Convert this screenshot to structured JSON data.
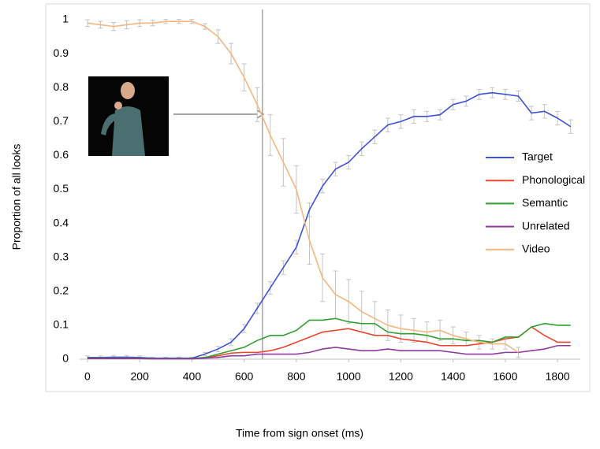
{
  "chart_data": {
    "type": "line",
    "xlabel": "Time from sign onset (ms)",
    "ylabel": "Proportion of all looks",
    "x": [
      0,
      50,
      100,
      150,
      200,
      250,
      300,
      350,
      400,
      450,
      500,
      550,
      600,
      650,
      700,
      750,
      800,
      850,
      900,
      950,
      1000,
      1050,
      1100,
      1150,
      1200,
      1250,
      1300,
      1350,
      1400,
      1450,
      1500,
      1550,
      1600,
      1650,
      1700,
      1750,
      1800,
      1850
    ],
    "xlim": [
      -30,
      1875
    ],
    "xticks": [
      0,
      200,
      400,
      600,
      800,
      1000,
      1200,
      1400,
      1600,
      1800
    ],
    "ylim": [
      0,
      1
    ],
    "yticks": [
      0,
      0.1,
      0.2,
      0.3,
      0.4,
      0.5,
      0.6,
      0.7,
      0.8,
      0.9,
      1
    ],
    "grid": false,
    "legend": "right",
    "vline": 670,
    "series": [
      {
        "name": "Target",
        "color": "#3f51d8",
        "values": [
          0.005,
          0.005,
          0.006,
          0.006,
          0.005,
          0.003,
          0.003,
          0.003,
          0.003,
          0.015,
          0.03,
          0.05,
          0.09,
          0.15,
          0.21,
          0.27,
          0.33,
          0.44,
          0.51,
          0.56,
          0.58,
          0.62,
          0.655,
          0.69,
          0.7,
          0.715,
          0.715,
          0.72,
          0.75,
          0.76,
          0.78,
          0.785,
          0.78,
          0.775,
          0.725,
          0.73,
          0.71,
          0.685
        ],
        "errors": [
          0.005,
          0.005,
          0.005,
          0.005,
          0.005,
          0.003,
          0.003,
          0.003,
          0.003,
          0.005,
          0.008,
          0.01,
          0.012,
          0.015,
          0.018,
          0.02,
          0.02,
          0.02,
          0.02,
          0.02,
          0.02,
          0.02,
          0.02,
          0.02,
          0.02,
          0.02,
          0.015,
          0.015,
          0.015,
          0.015,
          0.015,
          0.015,
          0.015,
          0.015,
          0.02,
          0.02,
          0.02,
          0.02
        ]
      },
      {
        "name": "Phonological",
        "color": "#f0432c",
        "values": [
          0.003,
          0.003,
          0.003,
          0.003,
          0.003,
          0.002,
          0.002,
          0.002,
          0.002,
          0.005,
          0.01,
          0.018,
          0.02,
          0.02,
          0.025,
          0.035,
          0.05,
          0.065,
          0.08,
          0.085,
          0.09,
          0.08,
          0.07,
          0.07,
          0.06,
          0.055,
          0.05,
          0.04,
          0.04,
          0.04,
          0.045,
          0.05,
          0.06,
          0.065,
          0.095,
          0.07,
          0.05,
          0.05
        ]
      },
      {
        "name": "Semantic",
        "color": "#2ea02e",
        "values": [
          0.003,
          0.003,
          0.003,
          0.003,
          0.003,
          0.002,
          0.002,
          0.002,
          0.002,
          0.005,
          0.015,
          0.025,
          0.035,
          0.055,
          0.07,
          0.07,
          0.085,
          0.115,
          0.115,
          0.12,
          0.11,
          0.105,
          0.105,
          0.08,
          0.075,
          0.075,
          0.07,
          0.06,
          0.06,
          0.055,
          0.055,
          0.05,
          0.065,
          0.065,
          0.095,
          0.105,
          0.1,
          0.1
        ]
      },
      {
        "name": "Unrelated",
        "color": "#8e3a9e",
        "values": [
          0.002,
          0.002,
          0.002,
          0.002,
          0.002,
          0.001,
          0.001,
          0.001,
          0.001,
          0.003,
          0.005,
          0.01,
          0.01,
          0.015,
          0.015,
          0.015,
          0.015,
          0.02,
          0.03,
          0.035,
          0.03,
          0.025,
          0.025,
          0.03,
          0.025,
          0.025,
          0.025,
          0.025,
          0.02,
          0.015,
          0.015,
          0.015,
          0.02,
          0.02,
          0.025,
          0.03,
          0.04,
          0.04
        ]
      },
      {
        "name": "Video",
        "color": "#f5b77f",
        "values": [
          0.99,
          0.985,
          0.98,
          0.985,
          0.99,
          0.99,
          0.995,
          0.995,
          0.995,
          0.98,
          0.95,
          0.9,
          0.83,
          0.75,
          0.66,
          0.58,
          0.5,
          0.35,
          0.24,
          0.19,
          0.17,
          0.14,
          0.12,
          0.1,
          0.09,
          0.085,
          0.08,
          0.085,
          0.07,
          0.06,
          0.05,
          0.045,
          0.045,
          0.02,
          null,
          null,
          null,
          null
        ],
        "errors": [
          0.01,
          0.01,
          0.012,
          0.012,
          0.01,
          0.008,
          0.006,
          0.006,
          0.006,
          0.008,
          0.02,
          0.03,
          0.04,
          0.05,
          0.06,
          0.07,
          0.07,
          0.07,
          0.07,
          0.07,
          0.065,
          0.06,
          0.05,
          0.045,
          0.04,
          0.035,
          0.03,
          0.03,
          0.025,
          0.02,
          0.02,
          0.015,
          0.015,
          0.015,
          null,
          null,
          null,
          null
        ]
      }
    ]
  }
}
